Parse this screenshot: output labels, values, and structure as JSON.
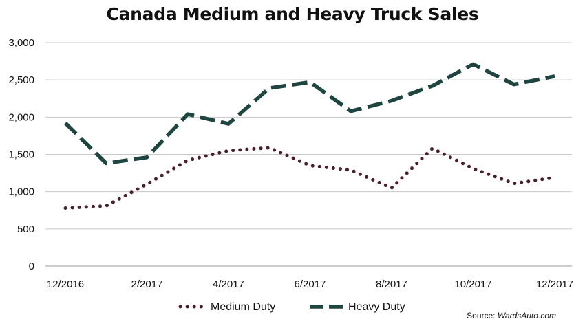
{
  "chart_data": {
    "type": "line",
    "title": "Canada Medium and Heavy Truck Sales",
    "xlabel": "",
    "ylabel": "",
    "x": [
      "12/2016",
      "1/2017",
      "2/2017",
      "3/2017",
      "4/2017",
      "5/2017",
      "6/2017",
      "7/2017",
      "8/2017",
      "9/2017",
      "10/2017",
      "11/2017",
      "12/2017"
    ],
    "x_tick_labels": [
      "12/2016",
      "",
      "2/2017",
      "",
      "4/2017",
      "",
      "6/2017",
      "",
      "8/2017",
      "",
      "10/2017",
      "",
      "12/2017"
    ],
    "y_ticks": [
      "0",
      "500",
      "1,000",
      "1,500",
      "2,000",
      "2,500",
      "3,000"
    ],
    "ylim": [
      0,
      3000
    ],
    "grid": "horizontal",
    "legend": "bottom-center",
    "series": [
      {
        "name": "Medium Duty",
        "style": "dotted",
        "color": "#4a1f2a",
        "values": [
          780,
          810,
          1100,
          1420,
          1550,
          1590,
          1350,
          1290,
          1050,
          1580,
          1310,
          1110,
          1190
        ]
      },
      {
        "name": "Heavy Duty",
        "style": "dashed",
        "color": "#1f4540",
        "values": [
          1920,
          1380,
          1460,
          2040,
          1910,
          2390,
          2470,
          2080,
          2220,
          2420,
          2710,
          2440,
          2550
        ]
      }
    ]
  },
  "source": {
    "prefix": "Source: ",
    "name": "WardsAuto.com"
  }
}
